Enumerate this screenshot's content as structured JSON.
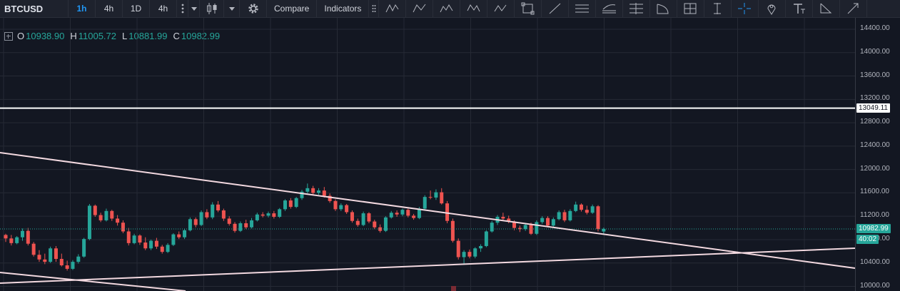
{
  "toolbar": {
    "symbol": "BTCUSD",
    "intervals": [
      "1h",
      "4h",
      "1D",
      "4h"
    ],
    "active_interval": "1h",
    "compare_label": "Compare",
    "indicators_label": "Indicators",
    "tool_icons": [
      "xabcd-pattern-icon",
      "abcd-pattern-icon",
      "elliott-wave-icon",
      "wxyz-pattern-icon",
      "wxy-pattern-icon",
      "rectangle-icon",
      "trend-line-icon",
      "parallel-channel-icon",
      "fib-channel-icon",
      "fib-retracement-icon",
      "pitchfan-icon",
      "gann-box-icon",
      "long-position-icon",
      "crosshair-icon",
      "pin-icon",
      "text-icon",
      "measure-icon",
      "arrow-icon"
    ]
  },
  "ohlc": {
    "o_label": "O",
    "o": "10938.90",
    "h_label": "H",
    "h": "11005.72",
    "l_label": "L",
    "l": "10881.99",
    "c_label": "C",
    "c": "10982.99"
  },
  "price_axis": {
    "ticks": [
      "14400.00",
      "14000.00",
      "13600.00",
      "13200.00",
      "12800.00",
      "12400.00",
      "12000.00",
      "11600.00",
      "11200.00",
      "10800.00",
      "10400.00",
      "10000.00"
    ],
    "hline_label": "13049.11",
    "last_price_label": "10982.99",
    "countdown_label": "40:02"
  },
  "colors": {
    "up": "#26a69a",
    "down": "#ef5350",
    "background": "#131722",
    "trendline": "#f3d9e0",
    "hline": "#ffffff"
  },
  "chart_data": {
    "type": "candlestick",
    "symbol": "BTCUSD",
    "interval": "1h",
    "ylim": [
      10000,
      14400
    ],
    "last_price": 10982.99,
    "horizontal_line": 13049.11,
    "candles": [
      [
        10880,
        10900,
        10760,
        10820
      ],
      [
        10820,
        10880,
        10700,
        10740
      ],
      [
        10740,
        10860,
        10720,
        10840
      ],
      [
        10840,
        10990,
        10780,
        10950
      ],
      [
        10950,
        11000,
        10700,
        10730
      ],
      [
        10730,
        10760,
        10510,
        10540
      ],
      [
        10540,
        10620,
        10420,
        10460
      ],
      [
        10460,
        10560,
        10380,
        10420
      ],
      [
        10420,
        10680,
        10400,
        10650
      ],
      [
        10650,
        10690,
        10420,
        10470
      ],
      [
        10470,
        10560,
        10340,
        10360
      ],
      [
        10360,
        10440,
        10270,
        10300
      ],
      [
        10300,
        10450,
        10280,
        10420
      ],
      [
        10420,
        10550,
        10390,
        10510
      ],
      [
        10510,
        10830,
        10490,
        10810
      ],
      [
        10810,
        11410,
        10790,
        11380
      ],
      [
        11380,
        11400,
        11190,
        11220
      ],
      [
        11220,
        11260,
        11100,
        11130
      ],
      [
        11130,
        11330,
        11110,
        11290
      ],
      [
        11290,
        11310,
        11120,
        11160
      ],
      [
        11160,
        11220,
        11040,
        11090
      ],
      [
        11090,
        11130,
        10910,
        10940
      ],
      [
        10940,
        11000,
        10700,
        10740
      ],
      [
        10740,
        10900,
        10720,
        10870
      ],
      [
        10870,
        10890,
        10710,
        10750
      ],
      [
        10750,
        10840,
        10620,
        10650
      ],
      [
        10650,
        10800,
        10620,
        10780
      ],
      [
        10780,
        10830,
        10640,
        10680
      ],
      [
        10680,
        10710,
        10560,
        10590
      ],
      [
        10590,
        10740,
        10570,
        10710
      ],
      [
        10710,
        10910,
        10690,
        10890
      ],
      [
        10890,
        10940,
        10810,
        10840
      ],
      [
        10840,
        10990,
        10810,
        10960
      ],
      [
        10960,
        11180,
        10940,
        11150
      ],
      [
        11150,
        11180,
        11010,
        11050
      ],
      [
        11050,
        11300,
        11030,
        11270
      ],
      [
        11270,
        11320,
        11150,
        11180
      ],
      [
        11180,
        11440,
        11150,
        11400
      ],
      [
        11400,
        11460,
        11270,
        11300
      ],
      [
        11300,
        11330,
        11120,
        11160
      ],
      [
        11160,
        11200,
        11040,
        11070
      ],
      [
        11070,
        11100,
        10920,
        10950
      ],
      [
        10950,
        11110,
        10930,
        11080
      ],
      [
        11080,
        11140,
        10980,
        11010
      ],
      [
        11010,
        11170,
        10990,
        11130
      ],
      [
        11130,
        11260,
        11110,
        11230
      ],
      [
        11230,
        11270,
        11180,
        11210
      ],
      [
        11210,
        11280,
        11180,
        11250
      ],
      [
        11250,
        11290,
        11160,
        11190
      ],
      [
        11190,
        11340,
        11170,
        11320
      ],
      [
        11320,
        11490,
        11290,
        11470
      ],
      [
        11470,
        11510,
        11330,
        11360
      ],
      [
        11360,
        11530,
        11340,
        11510
      ],
      [
        11510,
        11650,
        11480,
        11620
      ],
      [
        11620,
        11760,
        11590,
        11680
      ],
      [
        11680,
        11720,
        11560,
        11600
      ],
      [
        11600,
        11680,
        11570,
        11640
      ],
      [
        11640,
        11700,
        11520,
        11550
      ],
      [
        11550,
        11590,
        11430,
        11460
      ],
      [
        11460,
        11490,
        11290,
        11320
      ],
      [
        11320,
        11420,
        11290,
        11390
      ],
      [
        11390,
        11410,
        11240,
        11270
      ],
      [
        11270,
        11300,
        11090,
        11120
      ],
      [
        11120,
        11160,
        11020,
        11050
      ],
      [
        11050,
        11280,
        11030,
        11250
      ],
      [
        11250,
        11270,
        11080,
        11110
      ],
      [
        11110,
        11140,
        10980,
        11010
      ],
      [
        11010,
        11060,
        10920,
        10950
      ],
      [
        10950,
        11200,
        10930,
        11180
      ],
      [
        11180,
        11290,
        11160,
        11260
      ],
      [
        11260,
        11300,
        11190,
        11230
      ],
      [
        11230,
        11330,
        11200,
        11310
      ],
      [
        11310,
        11330,
        11180,
        11210
      ],
      [
        11210,
        11240,
        11140,
        11170
      ],
      [
        11170,
        11360,
        11150,
        11330
      ],
      [
        11330,
        11560,
        11310,
        11530
      ],
      [
        11530,
        11640,
        11490,
        11520
      ],
      [
        11520,
        11660,
        11480,
        11610
      ],
      [
        11610,
        11680,
        11400,
        11420
      ],
      [
        11420,
        11460,
        11080,
        11120
      ],
      [
        11120,
        11160,
        10750,
        10780
      ],
      [
        10780,
        10820,
        10460,
        10500
      ],
      [
        10500,
        10620,
        10370,
        10590
      ],
      [
        10590,
        10630,
        10480,
        10510
      ],
      [
        10510,
        10670,
        10480,
        10650
      ],
      [
        10650,
        10720,
        10590,
        10690
      ],
      [
        10690,
        10960,
        10670,
        10940
      ],
      [
        10940,
        11120,
        10920,
        11090
      ],
      [
        11090,
        11220,
        11050,
        11190
      ],
      [
        11190,
        11260,
        11120,
        11160
      ],
      [
        11160,
        11210,
        11080,
        11110
      ],
      [
        11110,
        11130,
        10960,
        11000
      ],
      [
        11000,
        11040,
        10930,
        10980
      ],
      [
        10980,
        11080,
        10950,
        11050
      ],
      [
        11050,
        11090,
        10880,
        10900
      ],
      [
        10900,
        11130,
        10880,
        11100
      ],
      [
        11100,
        11200,
        11070,
        11170
      ],
      [
        11170,
        11200,
        11010,
        11040
      ],
      [
        11040,
        11180,
        11020,
        11150
      ],
      [
        11150,
        11300,
        11130,
        11270
      ],
      [
        11270,
        11310,
        11100,
        11130
      ],
      [
        11130,
        11320,
        11110,
        11290
      ],
      [
        11290,
        11450,
        11270,
        11400
      ],
      [
        11400,
        11420,
        11280,
        11310
      ],
      [
        11310,
        11380,
        11230,
        11260
      ],
      [
        11260,
        11400,
        11240,
        11370
      ],
      [
        11370,
        11390,
        10940,
        10980
      ],
      [
        10938.9,
        11005.72,
        10881.99,
        10982.99
      ]
    ]
  }
}
